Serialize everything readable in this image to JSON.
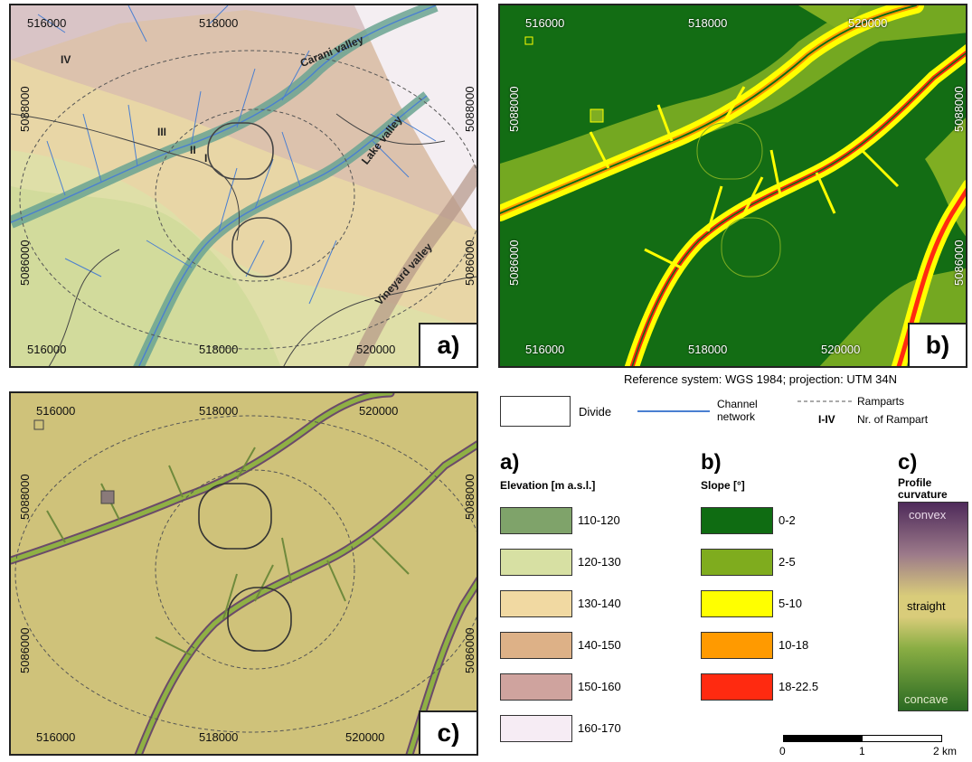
{
  "panels": {
    "a": {
      "tag": "a)",
      "x_ticks_top": [
        "516000",
        "518000"
      ],
      "x_ticks_bottom": [
        "516000",
        "518000",
        "520000"
      ],
      "y_ticks_left": [
        "5088000",
        "5086000"
      ],
      "y_ticks_right": [
        "5088000",
        "5086000"
      ],
      "rampart_labels": [
        "IV",
        "III",
        "II",
        "I"
      ],
      "valleys": [
        "Carani valley",
        "Lake valley",
        "Vineyard valley"
      ]
    },
    "b": {
      "tag": "b)",
      "x_ticks_top": [
        "516000",
        "518000",
        "520000"
      ],
      "x_ticks_bottom": [
        "516000",
        "518000",
        "520000"
      ],
      "y_ticks_left": [
        "5088000",
        "5086000"
      ],
      "y_ticks_right": [
        "5088000",
        "5086000"
      ]
    },
    "c": {
      "tag": "c)",
      "x_ticks_top": [
        "516000",
        "518000",
        "520000"
      ],
      "x_ticks_bottom": [
        "516000",
        "518000",
        "520000"
      ],
      "y_ticks_left": [
        "5088000",
        "5086000"
      ],
      "y_ticks_right": [
        "5088000",
        "5086000"
      ]
    }
  },
  "reference_system": "Reference system: WGS 1984; projection: UTM 34N",
  "legend": {
    "divide": "Divide",
    "channel_l1": "Channel",
    "channel_l2": "network",
    "ramparts": "Ramparts",
    "ramparts_num_code": "I-IV",
    "ramparts_num_label": "Nr. of Rampart",
    "a": {
      "letter": "a)",
      "title": "Elevation [m a.s.l.]",
      "classes": [
        {
          "label": "110-120",
          "color": "#7fa36a"
        },
        {
          "label": "120-130",
          "color": "#d7e0a3"
        },
        {
          "label": "130-140",
          "color": "#f1d9a2"
        },
        {
          "label": "140-150",
          "color": "#ddb187"
        },
        {
          "label": "150-160",
          "color": "#cfa39e"
        },
        {
          "label": "160-170",
          "color": "#f6ecf4"
        }
      ]
    },
    "b": {
      "letter": "b)",
      "title": "Slope [°]",
      "classes": [
        {
          "label": "0-2",
          "color": "#0f6c12"
        },
        {
          "label": "2-5",
          "color": "#7fac1e"
        },
        {
          "label": "5-10",
          "color": "#ffff00"
        },
        {
          "label": "10-18",
          "color": "#ff9a00"
        },
        {
          "label": "18-22.5",
          "color": "#ff2a10"
        }
      ]
    },
    "c": {
      "letter": "c)",
      "title_l1": "Profile",
      "title_l2": "curvature",
      "ramp_labels": {
        "top": "convex",
        "middle": "straight",
        "bottom": "concave"
      }
    },
    "scalebar": {
      "labels": [
        "0",
        "1",
        "2 km"
      ]
    }
  }
}
